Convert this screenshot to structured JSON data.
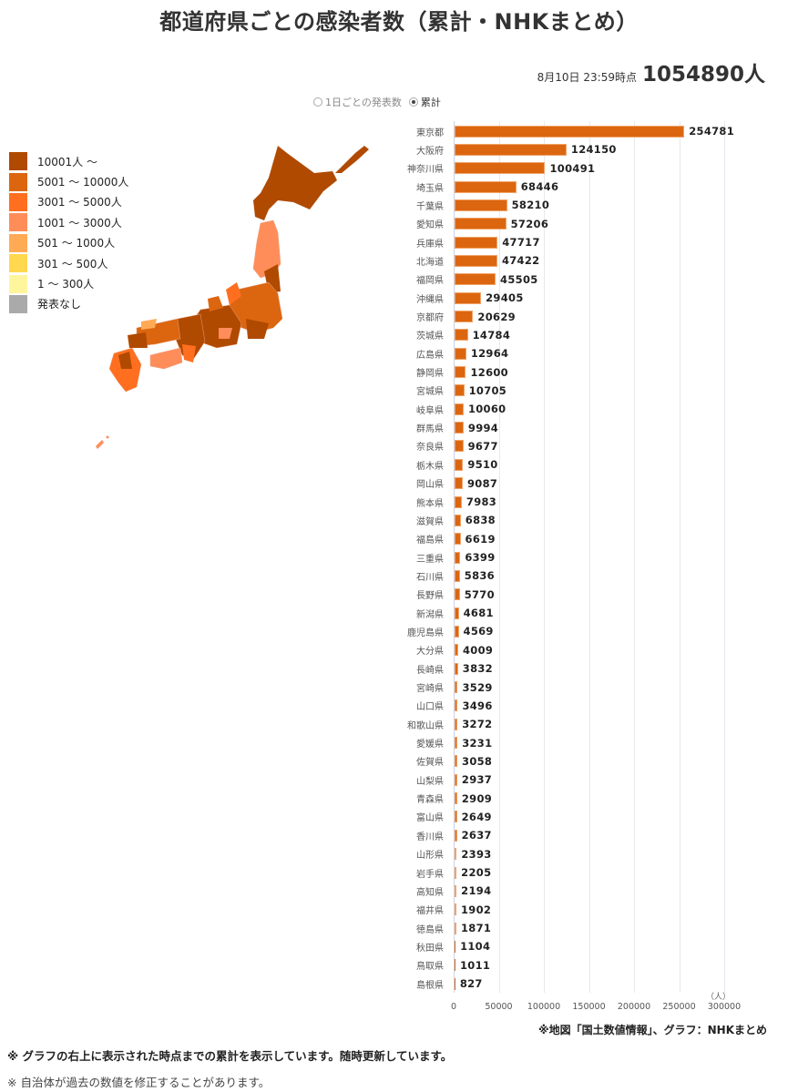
{
  "header": {
    "title": "都道府県ごとの感染者数（累計・NHKまとめ）",
    "timestamp": "8月10日 23:59時点",
    "total": "1054890人"
  },
  "toggle": {
    "options": [
      {
        "label": "1日ごとの発表数",
        "selected": false
      },
      {
        "label": "累計",
        "selected": true
      }
    ]
  },
  "legend": [
    {
      "label": "10001人 ～",
      "color": "#b04a00"
    },
    {
      "label": "5001 ～ 10000人",
      "color": "#dc6610"
    },
    {
      "label": "3001 ～ 5000人",
      "color": "#ff6f1f"
    },
    {
      "label": "1001 ～ 3000人",
      "color": "#ff8d5a"
    },
    {
      "label": "501 ～ 1000人",
      "color": "#ffaa55"
    },
    {
      "label": "301 ～ 500人",
      "color": "#ffd84f"
    },
    {
      "label": "1 ～ 300人",
      "color": "#fff59d"
    },
    {
      "label": "発表なし",
      "color": "#aaaaaa"
    }
  ],
  "chart_data": {
    "type": "bar",
    "orientation": "horizontal",
    "title": "都道府県ごとの感染者数（累計・NHKまとめ）",
    "xlabel": "（人）",
    "ylabel": "",
    "xlim": [
      0,
      300000
    ],
    "xticks": [
      "0",
      "50000",
      "100000",
      "150000",
      "200000",
      "250000",
      "300000"
    ],
    "grid": true,
    "bar_color": "#dc6610",
    "categories": [
      "東京都",
      "大阪府",
      "神奈川県",
      "埼玉県",
      "千葉県",
      "愛知県",
      "兵庫県",
      "北海道",
      "福岡県",
      "沖縄県",
      "京都府",
      "茨城県",
      "広島県",
      "静岡県",
      "宮城県",
      "岐阜県",
      "群馬県",
      "奈良県",
      "栃木県",
      "岡山県",
      "熊本県",
      "滋賀県",
      "福島県",
      "三重県",
      "石川県",
      "長野県",
      "新潟県",
      "鹿児島県",
      "大分県",
      "長崎県",
      "宮崎県",
      "山口県",
      "和歌山県",
      "愛媛県",
      "佐賀県",
      "山梨県",
      "青森県",
      "富山県",
      "香川県",
      "山形県",
      "岩手県",
      "高知県",
      "福井県",
      "徳島県",
      "秋田県",
      "鳥取県",
      "島根県"
    ],
    "values": [
      254781,
      124150,
      100491,
      68446,
      58210,
      57206,
      47717,
      47422,
      45505,
      29405,
      20629,
      14784,
      12964,
      12600,
      10705,
      10060,
      9994,
      9677,
      9510,
      9087,
      7983,
      6838,
      6619,
      6399,
      5836,
      5770,
      4681,
      4569,
      4009,
      3832,
      3529,
      3496,
      3272,
      3231,
      3058,
      2937,
      2909,
      2649,
      2637,
      2393,
      2205,
      2194,
      1902,
      1871,
      1104,
      1011,
      827
    ]
  },
  "footer": {
    "source": "※地図「国土数値情報」、グラフ：NHKまとめ",
    "note1": "※ グラフの右上に表示された時点までの累計を表示しています。随時更新しています。",
    "note2": "※ 自治体が過去の数値を修正することがあります。"
  }
}
